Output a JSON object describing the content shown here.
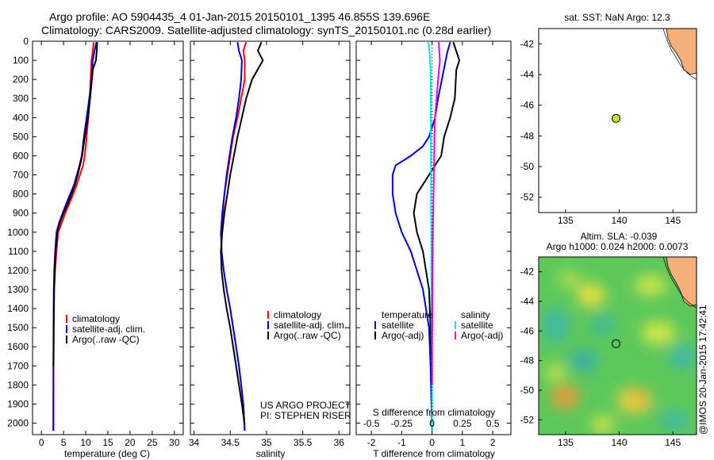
{
  "title": {
    "line1": "Argo profile: AO 5904435_4 01-Jan-2015 20150101_1395 46.855S 139.696E",
    "line2": "Climatology: CARS2009. Satellite-adjusted climatology: synTS_20150101.nc (0.28d earlier)"
  },
  "colors": {
    "climatology": "#ff0000",
    "satellite": "#0000cc",
    "argo": "#000000",
    "salinity_sat": "#00e5e5",
    "salinity_argo": "#e600e6",
    "land": "#f5b07a",
    "float_marker": "#c8e628"
  },
  "footer": {
    "project": "US ARGO PROJECT",
    "pi": "PI: STEPHEN RISER",
    "stamp": "@IMOS 20-Jan-2015 17:42:41"
  },
  "map_top": {
    "title": "sat. SST: NaN Argo: 12.3",
    "x_ticks": [
      "135",
      "140",
      "145"
    ],
    "y_ticks": [
      "-42",
      "-44",
      "-46",
      "-48",
      "-50",
      "-52"
    ],
    "xlim": [
      132.5,
      147.2
    ],
    "ylim": [
      -53,
      -41
    ],
    "float_lon": 139.7,
    "float_lat": -46.86
  },
  "map_bottom": {
    "title1": "Altim. SLA: -0.039",
    "title2": "Argo h1000: 0.024 h2000: 0.0073",
    "x_ticks": [
      "135",
      "140",
      "145"
    ],
    "y_ticks": [
      "-42",
      "-44",
      "-46",
      "-48",
      "-50",
      "-52"
    ],
    "xlim": [
      132.5,
      147.2
    ],
    "ylim": [
      -53,
      -41
    ],
    "float_lon": 139.7,
    "float_lat": -46.86
  },
  "chart_data": [
    {
      "type": "line",
      "xlabel": "temperature (deg C)",
      "x_ticks": [
        "0",
        "5",
        "10",
        "15",
        "20",
        "25",
        "30"
      ],
      "y_ticks": [
        "0",
        "100",
        "200",
        "300",
        "400",
        "500",
        "600",
        "700",
        "800",
        "900",
        "1000",
        "1100",
        "1200",
        "1300",
        "1400",
        "1500",
        "1600",
        "1700",
        "1800",
        "1900",
        "2000"
      ],
      "xlim": [
        -2,
        32
      ],
      "ylim": [
        2060,
        0
      ],
      "legend": [
        "climatology",
        "satellite-adj. clim.",
        "Argo(..raw -QC)"
      ],
      "series": [
        {
          "name": "climatology",
          "color": "#ff0000",
          "x": [
            11.8,
            11.6,
            11.3,
            11.1,
            10.9,
            10.6,
            10.2,
            9.8,
            9.4,
            8.7,
            8.0,
            7.2,
            6.3,
            5.4,
            4.6,
            3.8,
            3.4,
            3.1,
            2.9,
            2.8,
            2.75,
            2.7,
            2.7
          ],
          "y": [
            5,
            50,
            100,
            200,
            300,
            400,
            500,
            600,
            650,
            700,
            750,
            800,
            850,
            900,
            950,
            1000,
            1100,
            1200,
            1300,
            1500,
            1700,
            1900,
            2040
          ]
        },
        {
          "name": "satellite-adj. clim.",
          "color": "#0000cc",
          "x": [
            12.4,
            12.0,
            11.6,
            11.3,
            10.8,
            10.2,
            9.6,
            9.1,
            8.6,
            8.0,
            7.4,
            6.5,
            5.6,
            4.8,
            4.0,
            3.4,
            3.1,
            2.9,
            2.8,
            2.75,
            2.7,
            2.7
          ],
          "y": [
            5,
            50,
            100,
            200,
            300,
            400,
            500,
            600,
            650,
            700,
            750,
            800,
            850,
            900,
            950,
            1000,
            1100,
            1200,
            1300,
            1500,
            1700,
            2040
          ]
        },
        {
          "name": "Argo(..raw -QC)",
          "color": "#000000",
          "x": [
            12.6,
            12.5,
            12.3,
            11.6,
            11.0,
            10.5,
            9.8,
            9.2,
            8.7,
            8.2,
            7.6,
            6.8,
            6.0,
            5.0,
            4.2,
            3.6,
            3.2,
            3.0,
            2.85,
            2.78,
            2.72
          ],
          "y": [
            5,
            50,
            100,
            150,
            300,
            400,
            500,
            600,
            650,
            700,
            750,
            800,
            850,
            900,
            950,
            1000,
            1100,
            1200,
            1300,
            1500,
            1700
          ]
        }
      ]
    },
    {
      "type": "line",
      "xlabel": "salinity",
      "x_ticks": [
        "34",
        "34.5",
        "35",
        "35.5",
        "36"
      ],
      "xlim": [
        33.95,
        36.15
      ],
      "ylim": [
        2060,
        0
      ],
      "legend": [
        "climatology",
        "satellite-adj. clim.",
        "Argo(..raw -QC)"
      ],
      "series": [
        {
          "name": "climatology",
          "color": "#ff0000",
          "x": [
            34.72,
            34.68,
            34.7,
            34.7,
            34.65,
            34.6,
            34.54,
            34.5,
            34.46,
            34.42,
            34.4,
            34.38,
            34.38,
            34.41,
            34.45,
            34.5,
            34.54,
            34.58,
            34.62,
            34.65,
            34.68,
            34.7
          ],
          "y": [
            5,
            50,
            100,
            200,
            300,
            400,
            500,
            600,
            700,
            800,
            900,
            1000,
            1100,
            1200,
            1300,
            1400,
            1500,
            1600,
            1700,
            1800,
            1900,
            2040
          ]
        },
        {
          "name": "satellite-adj. clim.",
          "color": "#0000cc",
          "x": [
            34.6,
            34.62,
            34.66,
            34.65,
            34.62,
            34.58,
            34.53,
            34.49,
            34.45,
            34.42,
            34.39,
            34.37,
            34.38,
            34.41,
            34.45,
            34.5,
            34.54,
            34.58,
            34.62,
            34.65,
            34.68,
            34.7
          ],
          "y": [
            5,
            50,
            100,
            200,
            300,
            400,
            500,
            600,
            700,
            800,
            900,
            1000,
            1100,
            1200,
            1300,
            1400,
            1500,
            1600,
            1700,
            1800,
            1900,
            2040
          ]
        },
        {
          "name": "Argo(..raw -QC)",
          "color": "#000000",
          "x": [
            34.93,
            34.88,
            34.95,
            34.8,
            34.72,
            34.66,
            34.6,
            34.55,
            34.5,
            34.46,
            34.42,
            34.39,
            34.37,
            34.38,
            34.41,
            34.45,
            34.5,
            34.54,
            34.58,
            34.62,
            34.66,
            34.7
          ],
          "y": [
            5,
            50,
            100,
            200,
            300,
            400,
            500,
            600,
            700,
            800,
            900,
            1000,
            1100,
            1200,
            1300,
            1400,
            1500,
            1600,
            1700,
            1800,
            1900,
            2010
          ]
        }
      ]
    },
    {
      "type": "line",
      "xlabel": "T difference from climatology",
      "x_ticks": [
        "-2",
        "-1",
        "0",
        "1",
        "2"
      ],
      "top_label": "S difference from climatology",
      "top_ticks": [
        "-0.5",
        "-0.25",
        "0",
        "0.25",
        "0.5"
      ],
      "xlim": [
        -2.5,
        2.6
      ],
      "ylim": [
        2060,
        0
      ],
      "legend_groups": [
        {
          "heading": "temperature",
          "items": [
            "satellite",
            "Argo(-adj)"
          ]
        },
        {
          "heading": "salinity",
          "items": [
            "satellite",
            "Argo(-adj)"
          ]
        }
      ],
      "series": [
        {
          "name": "temperature satellite",
          "color": "#0000cc",
          "axis": "T",
          "x": [
            0.6,
            0.5,
            0.45,
            0.2,
            0.1,
            -0.1,
            -0.3,
            -0.7,
            -1.2,
            -1.3,
            -1.3,
            -1.2,
            -1.0,
            -0.7,
            -0.5,
            -0.3,
            -0.2,
            -0.1,
            -0.05,
            0
          ],
          "y": [
            5,
            60,
            100,
            300,
            400,
            500,
            550,
            600,
            650,
            700,
            800,
            900,
            1000,
            1100,
            1200,
            1300,
            1400,
            1500,
            1700,
            2040
          ]
        },
        {
          "name": "temperature Argo(-adj)",
          "color": "#000000",
          "axis": "T",
          "x": [
            0.7,
            0.9,
            0.8,
            0.75,
            0.6,
            0.4,
            0.3,
            0.1,
            -0.1,
            -0.3,
            -0.5,
            -0.6,
            -0.5,
            -0.3,
            -0.2,
            -0.1,
            -0.05,
            0
          ],
          "y": [
            5,
            100,
            150,
            300,
            400,
            500,
            600,
            650,
            700,
            750,
            800,
            900,
            1000,
            1100,
            1200,
            1300,
            1500,
            1700
          ]
        },
        {
          "name": "salinity satellite",
          "color": "#00e5e5",
          "axis": "S",
          "x": [
            -0.12,
            -0.08,
            -0.05,
            -0.04,
            -0.04,
            -0.03,
            -0.03,
            -0.02,
            -0.02,
            -0.01,
            0,
            0,
            0
          ],
          "y": [
            5,
            60,
            150,
            300,
            500,
            700,
            900,
            1100,
            1300,
            1500,
            1700,
            1900,
            2040
          ]
        },
        {
          "name": "salinity Argo(-adj)",
          "color": "#e600e6",
          "axis": "S",
          "x": [
            0.22,
            0.26,
            0.2,
            0.15,
            0.1,
            0.08,
            0.07,
            0.06,
            0.05,
            0.04,
            0.03,
            0.02,
            0.01,
            0,
            0
          ],
          "y": [
            5,
            100,
            200,
            300,
            400,
            500,
            600,
            700,
            800,
            900,
            1000,
            1200,
            1400,
            1600,
            1800
          ]
        }
      ]
    }
  ]
}
